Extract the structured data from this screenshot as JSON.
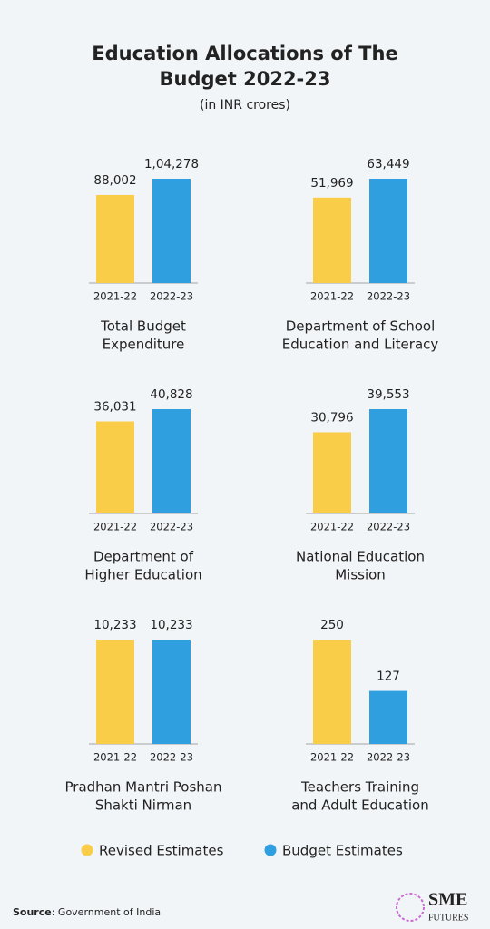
{
  "header": {
    "title": [
      "Education Allocations of The",
      "Budget 2022-23"
    ],
    "subtitle": "(in INR crores)"
  },
  "chart_data": [
    {
      "type": "bar",
      "title": [
        "Total Budget",
        "Expenditure"
      ],
      "categories": [
        "2021-22",
        "2022-23"
      ],
      "values": [
        88002,
        104278
      ],
      "value_labels": [
        "88,002",
        "1,04,278"
      ],
      "colors": [
        "#f9cd48",
        "#2f9fe0"
      ]
    },
    {
      "type": "bar",
      "title": [
        "Department of School",
        "Education and Literacy"
      ],
      "categories": [
        "2021-22",
        "2022-23"
      ],
      "values": [
        51969,
        63449
      ],
      "value_labels": [
        "51,969",
        "63,449"
      ],
      "colors": [
        "#f9cd48",
        "#2f9fe0"
      ]
    },
    {
      "type": "bar",
      "title": [
        "Department of",
        "Higher Education"
      ],
      "categories": [
        "2021-22",
        "2022-23"
      ],
      "values": [
        36031,
        40828
      ],
      "value_labels": [
        "36,031",
        "40,828"
      ],
      "colors": [
        "#f9cd48",
        "#2f9fe0"
      ]
    },
    {
      "type": "bar",
      "title": [
        "National Education",
        "Mission"
      ],
      "categories": [
        "2021-22",
        "2022-23"
      ],
      "values": [
        30796,
        39553
      ],
      "value_labels": [
        "30,796",
        "39,553"
      ],
      "colors": [
        "#f9cd48",
        "#2f9fe0"
      ]
    },
    {
      "type": "bar",
      "title": [
        "Pradhan Mantri Poshan",
        "Shakti Nirman"
      ],
      "categories": [
        "2021-22",
        "2022-23"
      ],
      "values": [
        10233,
        10233
      ],
      "value_labels": [
        "10,233",
        "10,233"
      ],
      "colors": [
        "#f9cd48",
        "#2f9fe0"
      ]
    },
    {
      "type": "bar",
      "title": [
        "Teachers Training",
        "and Adult Education"
      ],
      "categories": [
        "2021-22",
        "2022-23"
      ],
      "values": [
        250,
        127
      ],
      "colors": [
        "#f9cd48",
        "#2f9fe0"
      ]
    }
  ],
  "legend": [
    {
      "name": "Revised Estimates",
      "color": "#f9cd48"
    },
    {
      "name": "Budget Estimates",
      "color": "#2f9fe0"
    }
  ],
  "source": {
    "label": "Source",
    "text": ": Government of India"
  },
  "brand": {
    "name": "SME",
    "tagline": "FUTURES"
  }
}
